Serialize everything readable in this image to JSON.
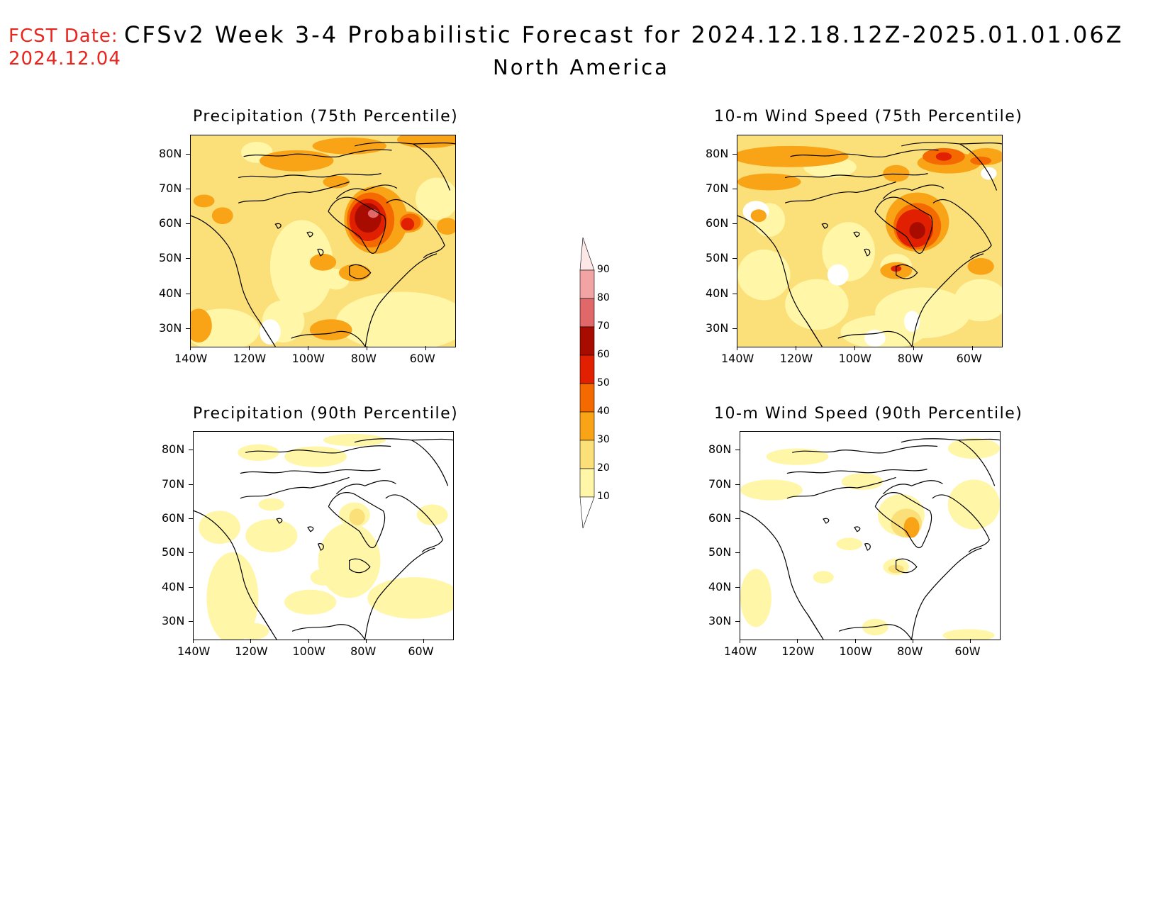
{
  "header": {
    "fcst_label": "FCST Date:",
    "fcst_date": "2024.12.04",
    "title": "CFSv2 Week 3-4 Probabilistic Forecast for 2024.12.18.12Z-2025.01.01.06Z",
    "region": "North America"
  },
  "panels": [
    {
      "id": "precip75",
      "title": "Precipitation (75th Percentile)"
    },
    {
      "id": "wind75",
      "title": "10-m Wind Speed (75th Percentile)"
    },
    {
      "id": "precip90",
      "title": "Precipitation (90th Percentile)"
    },
    {
      "id": "wind90",
      "title": "10-m Wind Speed (90th Percentile)"
    }
  ],
  "axes": {
    "lat_labels": [
      "80N",
      "70N",
      "60N",
      "50N",
      "40N",
      "30N"
    ],
    "lon_labels": [
      "140W",
      "120W",
      "100W",
      "80W",
      "60W"
    ]
  },
  "colorbar": {
    "labels": [
      "90",
      "80",
      "70",
      "60",
      "50",
      "40",
      "30",
      "20",
      "10"
    ],
    "colors": {
      "10-20": "#fff6a8",
      "20-30": "#fbdf78",
      "30-40": "#f9a417",
      "40-50": "#f56a00",
      "50-60": "#e02000",
      "60-70": "#a80c00",
      "70-80": "#e06868",
      "80-90": "#f2a4a4",
      "90+": "#fde7e7"
    }
  }
}
